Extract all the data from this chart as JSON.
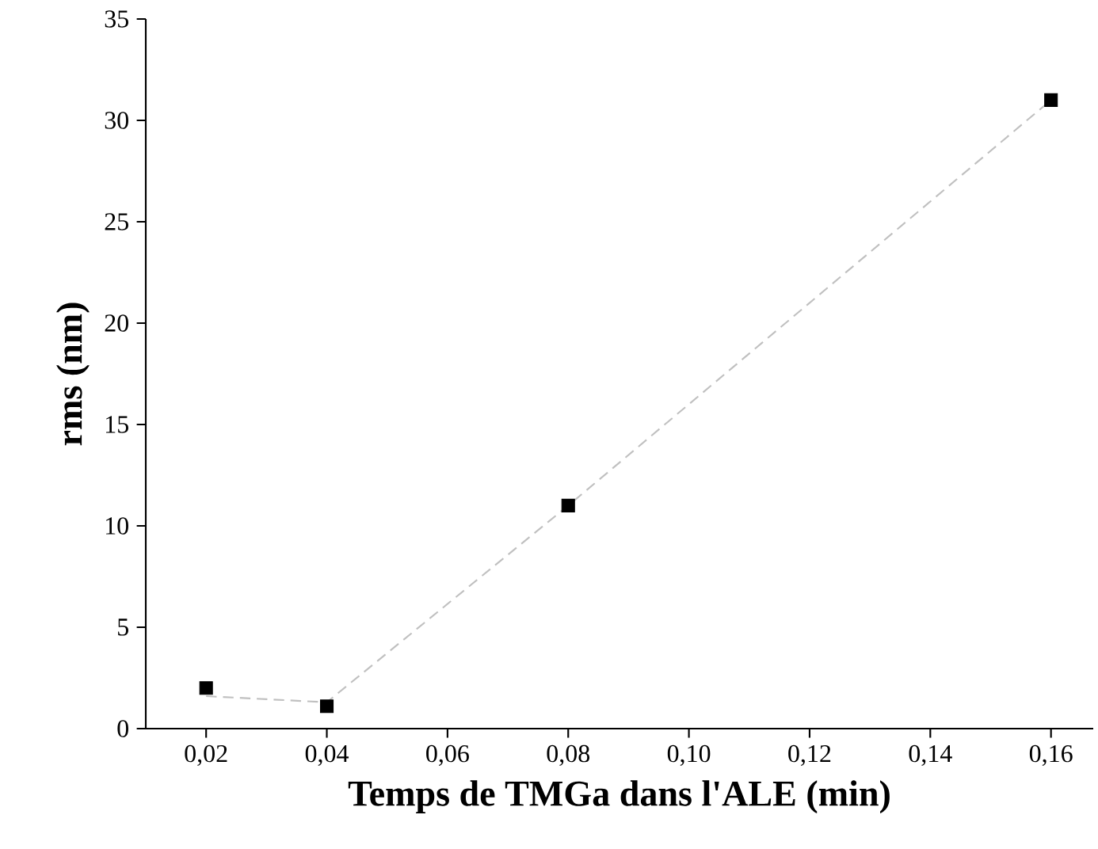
{
  "chart_data": {
    "type": "scatter",
    "xlabel": "Temps de TMGa dans l'ALE (min)",
    "ylabel": "rms (nm)",
    "xlim": [
      0.01,
      0.167
    ],
    "ylim": [
      0,
      35
    ],
    "xticks": [
      {
        "value": 0.02,
        "label": "0,02"
      },
      {
        "value": 0.04,
        "label": "0,04"
      },
      {
        "value": 0.06,
        "label": "0,06"
      },
      {
        "value": 0.08,
        "label": "0,08"
      },
      {
        "value": 0.1,
        "label": "0,10"
      },
      {
        "value": 0.12,
        "label": "0,12"
      },
      {
        "value": 0.14,
        "label": "0,14"
      },
      {
        "value": 0.16,
        "label": "0,16"
      }
    ],
    "yticks": [
      0,
      5,
      10,
      15,
      20,
      25,
      30,
      35
    ],
    "grid": false,
    "series": [
      {
        "type": "line",
        "color": "#c0c0c0",
        "line_style": "dashed",
        "marker": "none",
        "x": [
          0.02,
          0.04,
          0.08,
          0.16
        ],
        "values": [
          1.6,
          1.3,
          11,
          31
        ]
      },
      {
        "color": "#000000",
        "marker": "square",
        "x": [
          0.02,
          0.04,
          0.08,
          0.16
        ],
        "values": [
          2.0,
          1.1,
          11,
          31
        ]
      }
    ]
  }
}
